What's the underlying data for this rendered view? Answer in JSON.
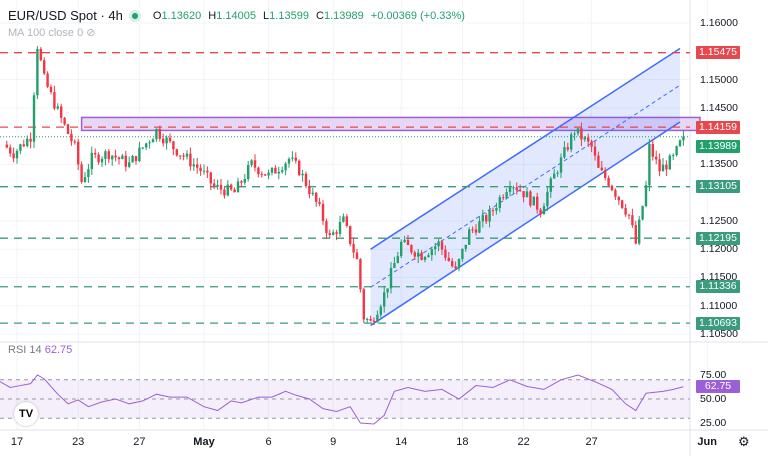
{
  "header": {
    "symbol": "EUR/USD Spot · 4h",
    "open_label": "O",
    "open": "1.13620",
    "high_label": "H",
    "high": "1.14005",
    "low_label": "L",
    "low": "1.13599",
    "close_label": "C",
    "close": "1.13989",
    "change": "+0.00369 (+0.33%)",
    "ma_label": "MA 100 close 0"
  },
  "rsi": {
    "label": "RSI 14",
    "value": "62.75"
  },
  "colors": {
    "up": "#22a06b",
    "down": "#f23645",
    "resistance": "#e5484d",
    "support": "#3a9b7d",
    "channel": "#3d6bff",
    "zone": "#9c5fd6",
    "rsi": "#9c5fd6"
  },
  "chart_data": {
    "type": "candlestick",
    "price_ticks": [
      "1.16000",
      "1.15000",
      "1.14500",
      "1.13500",
      "1.12500",
      "1.12000",
      "1.11500",
      "1.11000",
      "1.10500"
    ],
    "ylim": [
      1.1025,
      1.1625
    ],
    "date_ticks": [
      {
        "label": "17",
        "bar": 5
      },
      {
        "label": "23",
        "bar": 23
      },
      {
        "label": "27",
        "bar": 41
      },
      {
        "label": "May",
        "bar": 60
      },
      {
        "label": "6",
        "bar": 79
      },
      {
        "label": "9",
        "bar": 98
      },
      {
        "label": "14",
        "bar": 118
      },
      {
        "label": "18",
        "bar": 136
      },
      {
        "label": "22",
        "bar": 154
      },
      {
        "label": "27",
        "bar": 174
      },
      {
        "label": "Jun",
        "bar": 208
      }
    ],
    "price_path": [
      [
        1,
        1.1385
      ],
      [
        4,
        1.137
      ],
      [
        9,
        1.14
      ],
      [
        11,
        1.1561
      ],
      [
        13,
        1.15
      ],
      [
        18,
        1.143
      ],
      [
        22,
        1.138
      ],
      [
        24,
        1.132
      ],
      [
        27,
        1.136
      ],
      [
        32,
        1.137
      ],
      [
        38,
        1.135
      ],
      [
        46,
        1.141
      ],
      [
        51,
        1.138
      ],
      [
        59,
        1.134
      ],
      [
        63,
        1.131
      ],
      [
        69,
        1.13
      ],
      [
        74,
        1.135
      ],
      [
        79,
        1.133
      ],
      [
        85,
        1.136
      ],
      [
        88,
        1.134
      ],
      [
        94,
        1.127
      ],
      [
        97,
        1.122
      ],
      [
        101,
        1.125
      ],
      [
        105,
        1.118
      ],
      [
        107,
        1.108
      ],
      [
        109,
        1.107
      ],
      [
        113,
        1.112
      ],
      [
        118,
        1.121
      ],
      [
        124,
        1.119
      ],
      [
        129,
        1.121
      ],
      [
        134,
        1.116
      ],
      [
        138,
        1.123
      ],
      [
        144,
        1.126
      ],
      [
        150,
        1.132
      ],
      [
        154,
        1.13
      ],
      [
        159,
        1.127
      ],
      [
        163,
        1.133
      ],
      [
        169,
        1.141
      ],
      [
        174,
        1.138
      ],
      [
        176,
        1.134
      ],
      [
        179,
        1.132
      ],
      [
        185,
        1.126
      ],
      [
        187,
        1.121
      ],
      [
        190,
        1.131
      ],
      [
        191,
        1.138
      ],
      [
        194,
        1.134
      ],
      [
        198,
        1.136
      ],
      [
        201,
        1.13989
      ]
    ],
    "levels": [
      {
        "price": 1.15475,
        "label": "1.15475",
        "kind": "resistance"
      },
      {
        "price": 1.14159,
        "label": "1.14159",
        "kind": "resistance"
      },
      {
        "price": 1.13105,
        "label": "1.13105",
        "kind": "support"
      },
      {
        "price": 1.12195,
        "label": "1.12195",
        "kind": "support"
      },
      {
        "price": 1.11336,
        "label": "1.11336",
        "kind": "support"
      },
      {
        "price": 1.10693,
        "label": "1.10693",
        "kind": "support"
      }
    ],
    "last_price": {
      "price": 1.13989,
      "label": "1.13989"
    },
    "zone": {
      "from_bar": 24,
      "top": 1.1433,
      "bottom": 1.141
    },
    "channel": {
      "from_bar": 109,
      "to_bar": 200,
      "lower": [
        1.1065,
        1.1425
      ],
      "upper": [
        1.12,
        1.1555
      ]
    },
    "rsi_ticks": [
      "75.00",
      "50.00",
      "25.00"
    ],
    "rsi_levels": [
      70,
      50,
      30
    ],
    "rsi_path": [
      [
        0,
        68
      ],
      [
        3,
        62
      ],
      [
        6,
        64
      ],
      [
        9,
        66
      ],
      [
        11,
        75
      ],
      [
        13,
        71
      ],
      [
        17,
        55
      ],
      [
        20,
        45
      ],
      [
        23,
        49
      ],
      [
        26,
        42
      ],
      [
        30,
        47
      ],
      [
        34,
        50
      ],
      [
        38,
        45
      ],
      [
        42,
        48
      ],
      [
        46,
        55
      ],
      [
        50,
        52
      ],
      [
        55,
        52
      ],
      [
        60,
        42
      ],
      [
        64,
        38
      ],
      [
        68,
        48
      ],
      [
        71,
        46
      ],
      [
        76,
        52
      ],
      [
        80,
        52
      ],
      [
        84,
        58
      ],
      [
        87,
        54
      ],
      [
        91,
        50
      ],
      [
        95,
        40
      ],
      [
        99,
        37
      ],
      [
        103,
        42
      ],
      [
        106,
        25
      ],
      [
        110,
        24
      ],
      [
        113,
        33
      ],
      [
        116,
        58
      ],
      [
        120,
        62
      ],
      [
        125,
        58
      ],
      [
        130,
        60
      ],
      [
        135,
        50
      ],
      [
        140,
        64
      ],
      [
        145,
        62
      ],
      [
        150,
        70
      ],
      [
        155,
        63
      ],
      [
        160,
        60
      ],
      [
        165,
        70
      ],
      [
        170,
        75
      ],
      [
        175,
        68
      ],
      [
        180,
        60
      ],
      [
        184,
        45
      ],
      [
        187,
        38
      ],
      [
        190,
        56
      ],
      [
        195,
        58
      ],
      [
        198,
        60
      ],
      [
        201,
        62.75
      ]
    ]
  }
}
